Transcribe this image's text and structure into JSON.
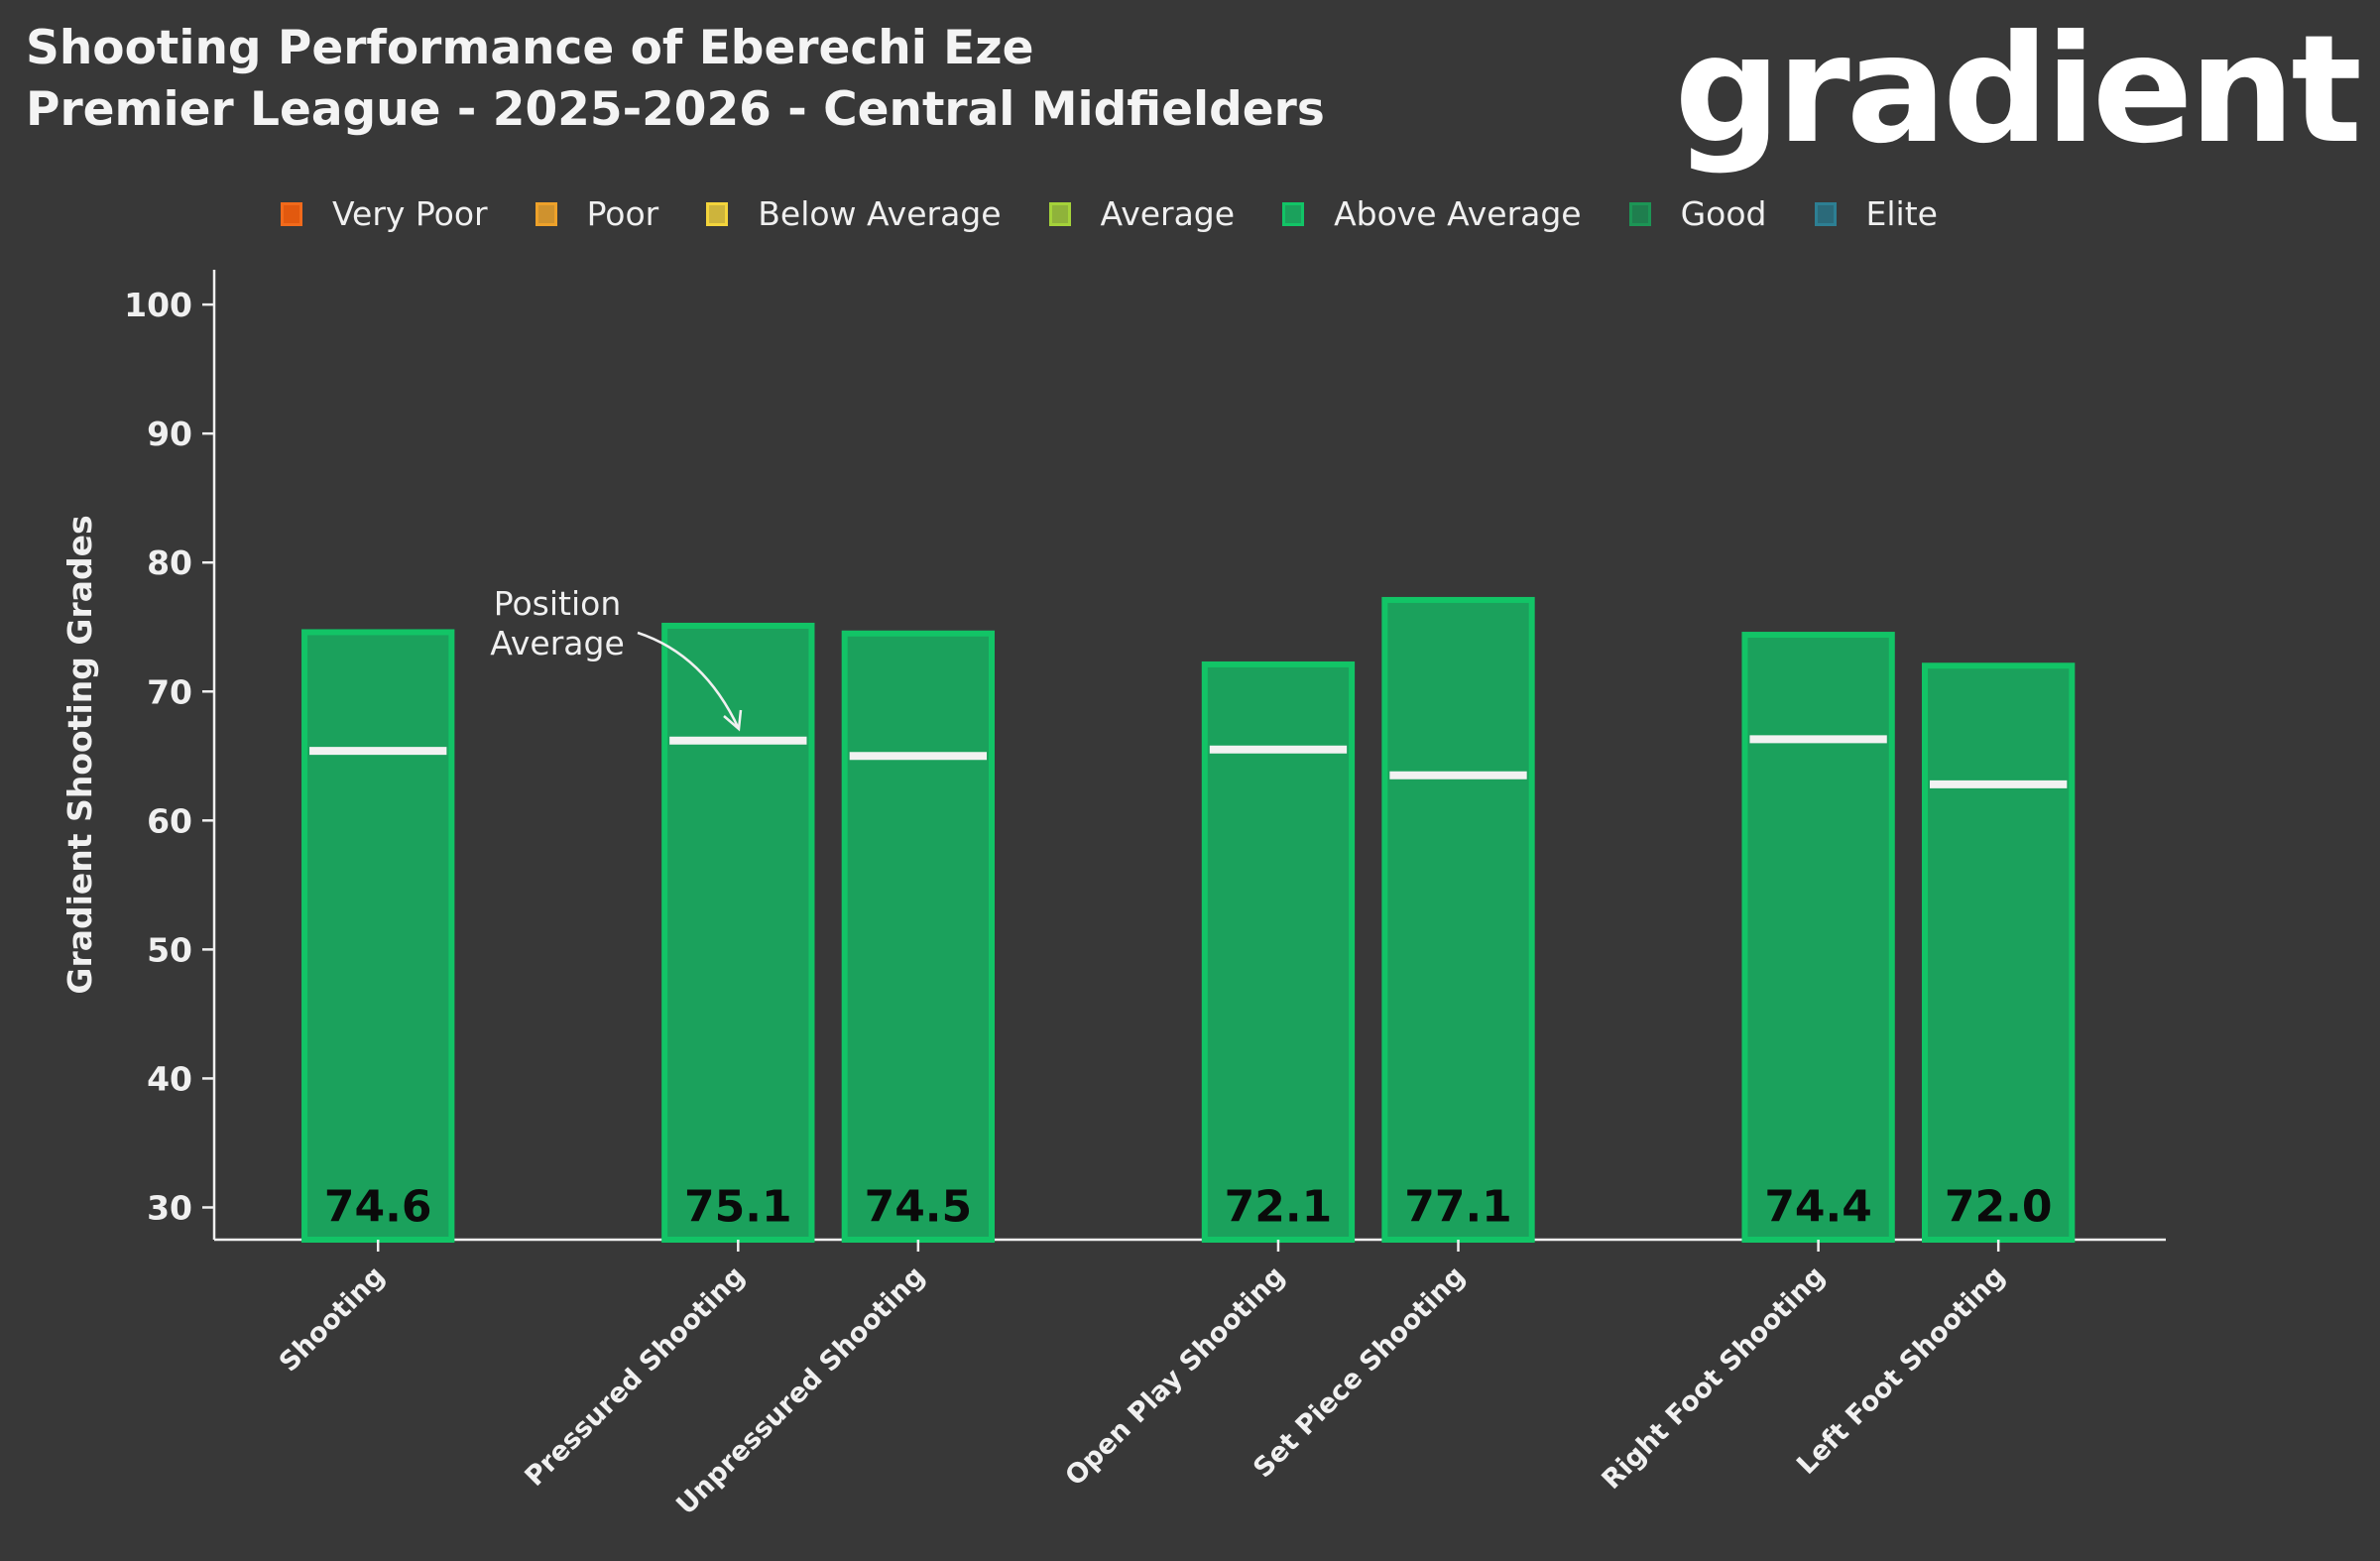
{
  "title_line1": "Shooting Performance of Eberechi Eze",
  "title_line2": "Premier League - 2025-2026 - Central Midfielders",
  "logo_text": "gradient",
  "legend": [
    {
      "label": "Very Poor",
      "fill": "#e2590f",
      "edge": "#f26a1b"
    },
    {
      "label": "Poor",
      "fill": "#cf922e",
      "edge": "#eea12a"
    },
    {
      "label": "Below Average",
      "fill": "#cdb43c",
      "edge": "#f3d43c"
    },
    {
      "label": "Average",
      "fill": "#8fb33a",
      "edge": "#a4d23a"
    },
    {
      "label": "Above Average",
      "fill": "#1ba15c",
      "edge": "#12c466"
    },
    {
      "label": "Good",
      "fill": "#1f7e4e",
      "edge": "#1c9555"
    },
    {
      "label": "Elite",
      "fill": "#2b6a7a",
      "edge": "#2d7f93"
    }
  ],
  "annotation": {
    "line1": "Position",
    "line2": "Average"
  },
  "chart_data": {
    "type": "bar",
    "title": "Shooting Performance of Eberechi Eze",
    "ylabel": "Gradient Shooting Grades",
    "xlabel": "",
    "ylim": [
      27.5,
      102.7
    ],
    "yticks": [
      30,
      40,
      50,
      60,
      70,
      80,
      90,
      100
    ],
    "categories": [
      "Shooting",
      "Pressured Shooting",
      "Unpressured Shooting",
      "Open Play Shooting",
      "Set Piece Shooting",
      "Right Foot Shooting",
      "Left Foot Shooting"
    ],
    "x_positions": [
      0,
      2,
      3,
      5,
      6,
      8,
      9
    ],
    "xlim": [
      -0.91,
      9.93
    ],
    "values": [
      74.6,
      75.1,
      74.5,
      72.1,
      77.1,
      74.4,
      72.0
    ],
    "value_labels": [
      "74.6",
      "75.1",
      "74.5",
      "72.1",
      "77.1",
      "74.4",
      "72.0"
    ],
    "position_average": [
      65.4,
      66.2,
      65.0,
      65.5,
      63.5,
      66.3,
      62.8
    ],
    "bar_category": "Above Average",
    "bar_fill": "#1ba15c",
    "bar_edge": "#12c466",
    "legend_position": "top"
  }
}
